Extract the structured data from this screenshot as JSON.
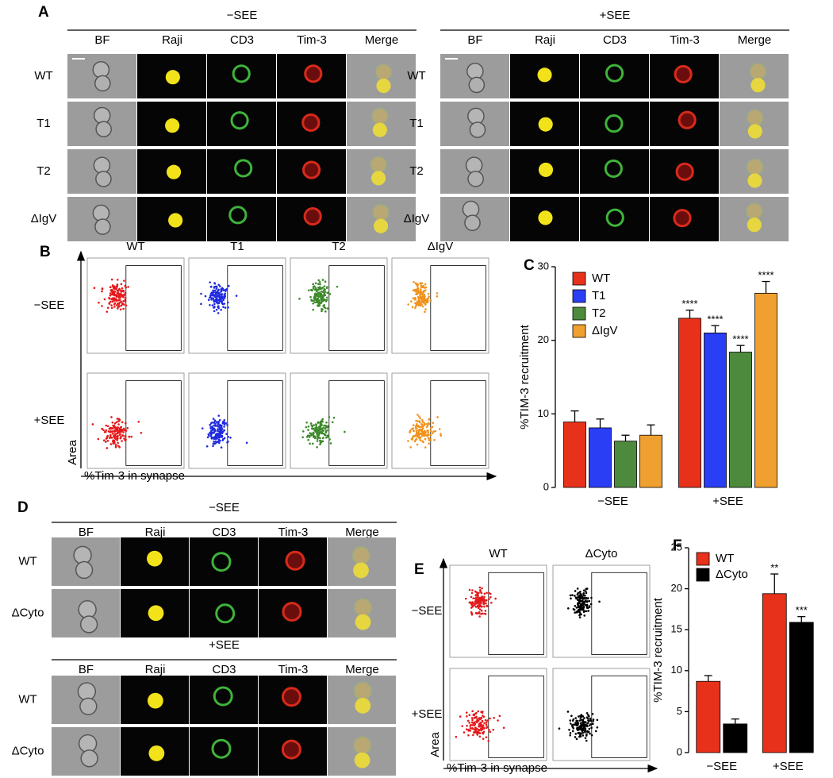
{
  "panels": {
    "A": {
      "label": "A",
      "groups": [
        {
          "title": "−SEE",
          "columns": [
            "BF",
            "Raji",
            "CD3",
            "Tim-3",
            "Merge"
          ],
          "rows": [
            "WT",
            "T1",
            "T2",
            "ΔIgV"
          ]
        },
        {
          "title": "+SEE",
          "columns": [
            "BF",
            "Raji",
            "CD3",
            "Tim-3",
            "Merge"
          ],
          "rows": [
            "WT",
            "T1",
            "T2",
            "ΔIgV"
          ]
        }
      ]
    },
    "B": {
      "label": "B",
      "columns": [
        "WT",
        "T1",
        "T2",
        "ΔIgV"
      ],
      "rows": [
        "−SEE",
        "+SEE"
      ],
      "colors": [
        "#e31a1c",
        "#1f2ae0",
        "#3d8a2a",
        "#f0931e"
      ],
      "y_label": "Area",
      "x_label": "%Tim-3 in synapse"
    },
    "C": {
      "label": "C"
    },
    "D": {
      "label": "D",
      "groups": [
        {
          "title": "−SEE",
          "columns": [
            "BF",
            "Raji",
            "CD3",
            "Tim-3",
            "Merge"
          ],
          "rows": [
            "WT",
            "ΔCyto"
          ]
        },
        {
          "title": "+SEE",
          "columns": [
            "BF",
            "Raji",
            "CD3",
            "Tim-3",
            "Merge"
          ],
          "rows": [
            "WT",
            "ΔCyto"
          ]
        }
      ]
    },
    "E": {
      "label": "E",
      "columns": [
        "WT",
        "ΔCyto"
      ],
      "rows": [
        "−SEE",
        "+SEE"
      ],
      "colors": [
        "#e31a1c",
        "#000000"
      ],
      "y_label": "Area",
      "x_label": "%Tim-3 in synapse"
    },
    "F": {
      "label": "F"
    }
  },
  "chart_data": [
    {
      "type": "bar",
      "y_label": "%TIM-3 recruitment",
      "categories": [
        "−SEE",
        "+SEE"
      ],
      "series": [
        {
          "name": "WT",
          "color": "#e8311a",
          "values": [
            8.9,
            23.0
          ],
          "errors": [
            1.5,
            1.1
          ],
          "stars": [
            null,
            "****"
          ]
        },
        {
          "name": "T1",
          "color": "#2a3ef5",
          "values": [
            8.1,
            21.0
          ],
          "errors": [
            1.2,
            1.0
          ],
          "stars": [
            null,
            "****"
          ]
        },
        {
          "name": "T2",
          "color": "#4e8a3e",
          "values": [
            6.3,
            18.4
          ],
          "errors": [
            0.8,
            0.9
          ],
          "stars": [
            null,
            "****"
          ]
        },
        {
          "name": "ΔIgV",
          "color": "#f0a030",
          "values": [
            7.1,
            26.4
          ],
          "errors": [
            1.4,
            1.6
          ],
          "stars": [
            null,
            "****"
          ]
        }
      ],
      "ylim": [
        0,
        30
      ],
      "yticks": [
        0,
        10,
        20,
        30
      ]
    },
    {
      "type": "bar",
      "y_label": "%TIM-3 recruitment",
      "categories": [
        "−SEE",
        "+SEE"
      ],
      "series": [
        {
          "name": "WT",
          "color": "#e8311a",
          "values": [
            8.7,
            19.4
          ],
          "errors": [
            0.7,
            2.4
          ],
          "stars": [
            null,
            "**"
          ]
        },
        {
          "name": "ΔCyto",
          "color": "#000000",
          "values": [
            3.5,
            15.9
          ],
          "errors": [
            0.6,
            0.7
          ],
          "stars": [
            null,
            "***"
          ]
        }
      ],
      "ylim": [
        0,
        25
      ],
      "yticks": [
        0,
        5,
        10,
        15,
        20,
        25
      ]
    }
  ]
}
